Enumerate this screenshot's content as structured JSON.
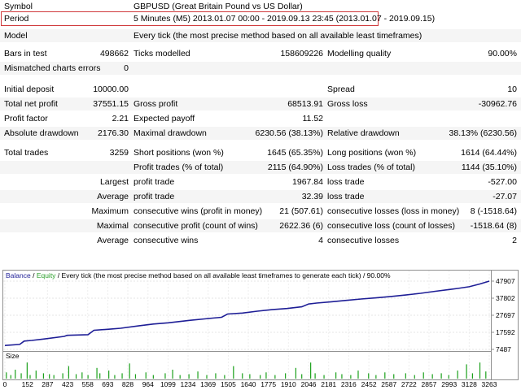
{
  "report": {
    "symbol_label": "Symbol",
    "symbol_value": "GBPUSD (Great Britain Pound vs US Dollar)",
    "period_label": "Period",
    "period_value": "5 Minutes (M5) 2013.01.07 00:00 - 2019.09.13 23:45 (2013.01.07 - 2019.09.15)",
    "model_label": "Model",
    "model_value": "Every tick (the most precise method based on all available least timeframes)",
    "bars_label": "Bars in test",
    "bars_value": "498662",
    "ticks_label": "Ticks modelled",
    "ticks_value": "158609226",
    "quality_label": "Modelling quality",
    "quality_value": "90.00%",
    "mismatch_label": "Mismatched charts errors",
    "mismatch_value": "0",
    "deposit_label": "Initial deposit",
    "deposit_value": "10000.00",
    "spread_label": "Spread",
    "spread_value": "10",
    "netprofit_label": "Total net profit",
    "netprofit_value": "37551.15",
    "grossprofit_label": "Gross profit",
    "grossprofit_value": "68513.91",
    "grossloss_label": "Gross loss",
    "grossloss_value": "-30962.76",
    "pf_label": "Profit factor",
    "pf_value": "2.21",
    "payoff_label": "Expected payoff",
    "payoff_value": "11.52",
    "absdd_label": "Absolute drawdown",
    "absdd_value": "2176.30",
    "maxdd_label": "Maximal drawdown",
    "maxdd_value": "6230.56 (38.13%)",
    "reldd_label": "Relative drawdown",
    "reldd_value": "38.13% (6230.56)",
    "trades_label": "Total trades",
    "trades_value": "3259",
    "short_label": "Short positions (won %)",
    "short_value": "1645 (65.35%)",
    "long_label": "Long positions (won %)",
    "long_value": "1614 (64.44%)",
    "profit_trades_label": "Profit trades (% of total)",
    "profit_trades_value": "2115 (64.90%)",
    "loss_trades_label": "Loss trades (% of total)",
    "loss_trades_value": "1144 (35.10%)",
    "largest_label": "Largest",
    "largest_profit_label": "profit trade",
    "largest_profit_value": "1967.84",
    "largest_loss_label": "loss trade",
    "largest_loss_value": "-527.00",
    "average_label": "Average",
    "average_profit_label": "profit trade",
    "average_profit_value": "32.39",
    "average_loss_label": "loss trade",
    "average_loss_value": "-27.07",
    "maximum_label": "Maximum",
    "max_wins_label": "consecutive wins (profit in money)",
    "max_wins_value": "21 (507.61)",
    "max_losses_label": "consecutive losses (loss in money)",
    "max_losses_value": "8 (-1518.64)",
    "maximal_label": "Maximal",
    "maximal_profit_label": "consecutive profit (count of wins)",
    "maximal_profit_value": "2622.36 (6)",
    "maximal_loss_label": "consecutive loss (count of losses)",
    "maximal_loss_value": "-1518.64 (8)",
    "avg2_label": "Average",
    "avg_wins_label": "consecutive wins",
    "avg_wins_value": "4",
    "avg_losses_label": "consecutive losses",
    "avg_losses_value": "2"
  },
  "colors": {
    "balance": "#1e1e96",
    "equity": "#2ca02c",
    "volume": "#1aa01a",
    "highlight_border": "#d0393b",
    "row_alt": "#f5f5f5"
  },
  "chart_data": {
    "type": "line",
    "legend": {
      "balance": "Balance",
      "sep1": " / ",
      "equity": "Equity",
      "sep2": " / ",
      "rest": "Every tick (the most precise method based on all available least timeframes to generate each tick)",
      "sep3": " / ",
      "quality": "90.00%"
    },
    "y_ticks": [
      47907,
      37802,
      27697,
      17592,
      7487
    ],
    "y_range": [
      7487,
      47907
    ],
    "x_ticks": [
      0,
      152,
      287,
      423,
      558,
      693,
      828,
      964,
      1099,
      1234,
      1369,
      1505,
      1640,
      1775,
      1910,
      2046,
      2181,
      2316,
      2452,
      2587,
      2722,
      2857,
      2993,
      3128,
      3263
    ],
    "x_range": [
      0,
      3263
    ],
    "size_label": "Size",
    "series": [
      {
        "name": "Balance",
        "x": [
          0,
          100,
          130,
          180,
          260,
          400,
          420,
          560,
          600,
          700,
          780,
          900,
          1000,
          1100,
          1250,
          1400,
          1460,
          1500,
          1600,
          1700,
          1800,
          1900,
          2000,
          2046,
          2100,
          2200,
          2300,
          2400,
          2500,
          2600,
          2700,
          2800,
          2900,
          3000,
          3050,
          3128,
          3200,
          3263
        ],
        "y": [
          9800,
          10400,
          12400,
          12800,
          13600,
          15200,
          15800,
          16200,
          18800,
          19400,
          20000,
          21400,
          22500,
          23200,
          24700,
          26000,
          26500,
          28400,
          29000,
          30100,
          31000,
          31700,
          32700,
          34400,
          34900,
          35700,
          36500,
          37300,
          38000,
          38800,
          39700,
          40700,
          41900,
          43000,
          43600,
          44600,
          46200,
          47900
        ]
      }
    ],
    "volume_bars": [
      [
        10,
        0.35
      ],
      [
        40,
        0.2
      ],
      [
        70,
        0.5
      ],
      [
        110,
        0.3
      ],
      [
        150,
        0.9
      ],
      [
        170,
        0.2
      ],
      [
        210,
        0.45
      ],
      [
        260,
        0.3
      ],
      [
        300,
        0.25
      ],
      [
        330,
        0.2
      ],
      [
        390,
        0.3
      ],
      [
        430,
        0.7
      ],
      [
        480,
        0.25
      ],
      [
        520,
        0.35
      ],
      [
        560,
        0.2
      ],
      [
        620,
        0.6
      ],
      [
        640,
        0.3
      ],
      [
        700,
        0.45
      ],
      [
        740,
        0.2
      ],
      [
        790,
        0.3
      ],
      [
        840,
        0.85
      ],
      [
        880,
        0.25
      ],
      [
        950,
        0.35
      ],
      [
        1000,
        0.2
      ],
      [
        1080,
        0.3
      ],
      [
        1130,
        0.5
      ],
      [
        1180,
        0.2
      ],
      [
        1240,
        0.25
      ],
      [
        1300,
        0.4
      ],
      [
        1360,
        0.2
      ],
      [
        1420,
        0.3
      ],
      [
        1480,
        0.2
      ],
      [
        1540,
        0.7
      ],
      [
        1600,
        0.3
      ],
      [
        1650,
        0.25
      ],
      [
        1720,
        0.2
      ],
      [
        1760,
        0.35
      ],
      [
        1820,
        0.2
      ],
      [
        1890,
        0.3
      ],
      [
        1960,
        0.6
      ],
      [
        2000,
        0.25
      ],
      [
        2060,
        0.9
      ],
      [
        2090,
        0.3
      ],
      [
        2150,
        0.2
      ],
      [
        2230,
        0.35
      ],
      [
        2270,
        0.25
      ],
      [
        2330,
        0.2
      ],
      [
        2380,
        0.45
      ],
      [
        2450,
        0.3
      ],
      [
        2500,
        0.2
      ],
      [
        2560,
        0.35
      ],
      [
        2620,
        0.25
      ],
      [
        2700,
        0.3
      ],
      [
        2760,
        0.2
      ],
      [
        2820,
        0.35
      ],
      [
        2880,
        0.25
      ],
      [
        2940,
        0.3
      ],
      [
        2990,
        0.2
      ],
      [
        3050,
        0.45
      ],
      [
        3110,
        0.8
      ],
      [
        3150,
        0.3
      ],
      [
        3200,
        0.9
      ],
      [
        3240,
        0.4
      ]
    ]
  }
}
